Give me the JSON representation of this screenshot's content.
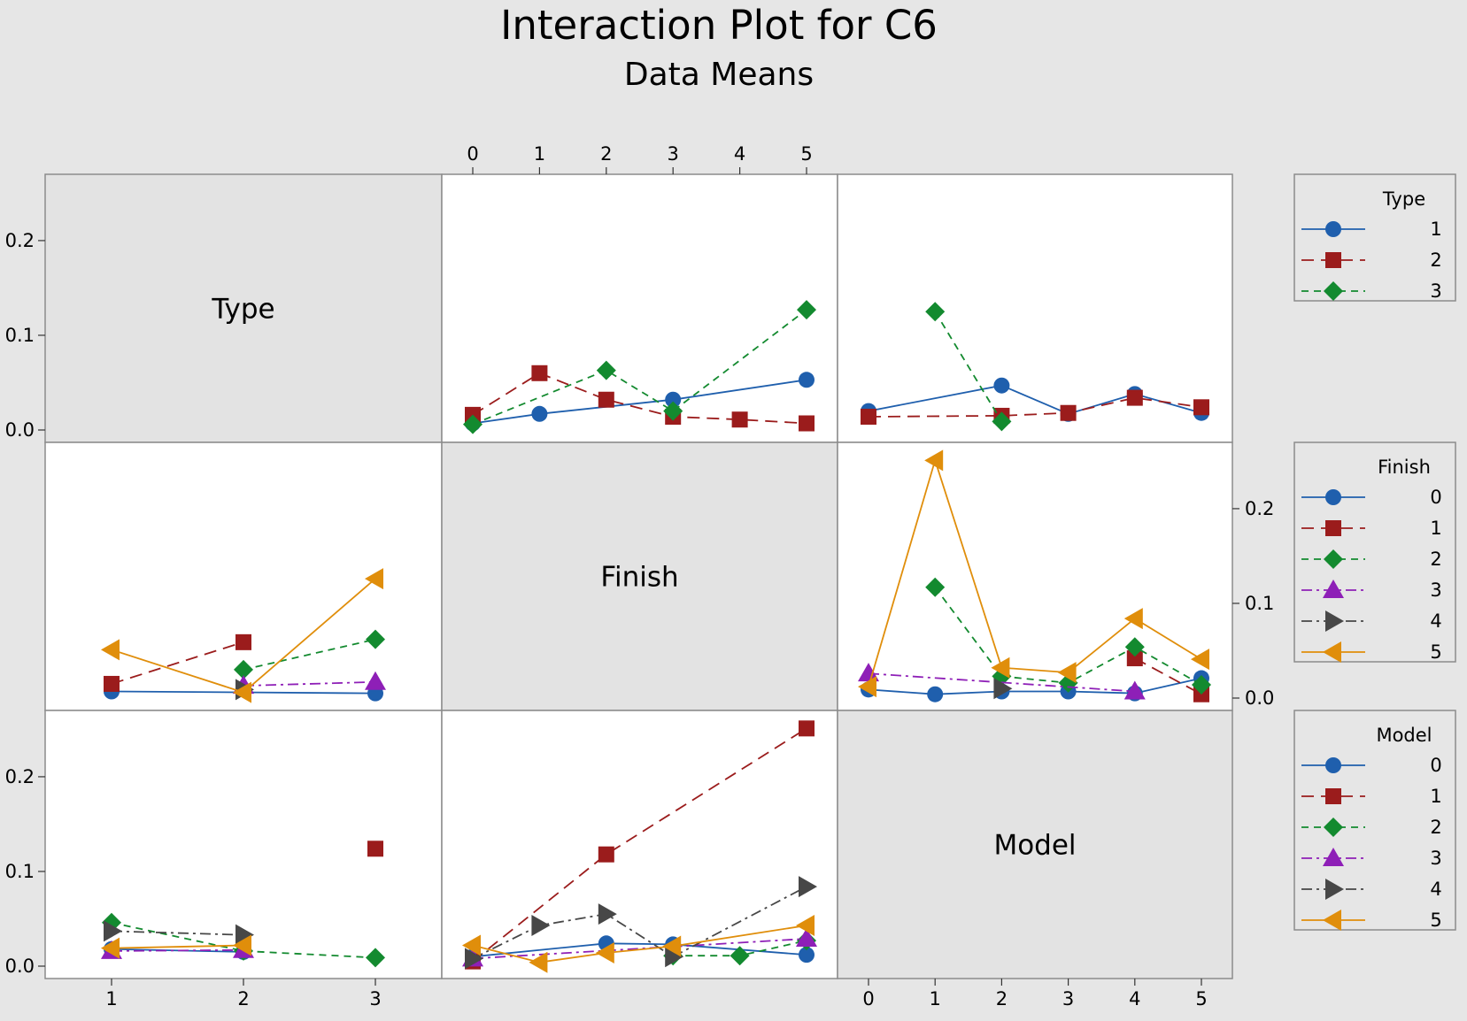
{
  "chart_data": {
    "type": "line",
    "title": "Interaction Plot for C6",
    "subtitle": "Data Means",
    "factors": [
      "Type",
      "Finish",
      "Model"
    ],
    "levels": {
      "Type": [
        "1",
        "2",
        "3"
      ],
      "Finish": [
        "0",
        "1",
        "2",
        "3",
        "4",
        "5"
      ],
      "Model": [
        "0",
        "1",
        "2",
        "3",
        "4",
        "5"
      ]
    },
    "yticks": [
      "0.0",
      "0.1",
      "0.2"
    ],
    "ylim": [
      0,
      0.27
    ],
    "legends": [
      {
        "title": "Type",
        "labels": [
          "1",
          "2",
          "3"
        ]
      },
      {
        "title": "Finish",
        "labels": [
          "0",
          "1",
          "2",
          "3",
          "4",
          "5"
        ]
      },
      {
        "title": "Model",
        "labels": [
          "0",
          "1",
          "2",
          "3",
          "4",
          "5"
        ]
      }
    ],
    "panels": [
      {
        "row": 0,
        "col": 1,
        "x_factor": "Finish",
        "trace_factor": "Type",
        "series": [
          {
            "name": "1",
            "values": [
              0.007,
              0.017,
              null,
              0.032,
              null,
              0.053
            ]
          },
          {
            "name": "2",
            "values": [
              0.016,
              0.06,
              0.032,
              0.014,
              0.011,
              0.007
            ]
          },
          {
            "name": "3",
            "values": [
              0.006,
              null,
              0.063,
              0.02,
              null,
              0.127
            ]
          }
        ]
      },
      {
        "row": 0,
        "col": 2,
        "x_factor": "Model",
        "trace_factor": "Type",
        "series": [
          {
            "name": "1",
            "values": [
              0.02,
              null,
              0.047,
              0.017,
              0.038,
              0.018
            ]
          },
          {
            "name": "2",
            "values": [
              0.014,
              null,
              0.015,
              0.018,
              0.034,
              0.024
            ]
          },
          {
            "name": "3",
            "values": [
              null,
              0.125,
              0.009,
              null,
              null,
              null
            ]
          }
        ]
      },
      {
        "row": 1,
        "col": 0,
        "x_factor": "Type",
        "trace_factor": "Finish",
        "series": [
          {
            "name": "0",
            "values": [
              0.007,
              null,
              0.005
            ]
          },
          {
            "name": "1",
            "values": [
              0.015,
              0.059,
              null
            ]
          },
          {
            "name": "2",
            "values": [
              null,
              0.03,
              0.062
            ]
          },
          {
            "name": "3",
            "values": [
              null,
              0.013,
              0.017
            ]
          },
          {
            "name": "4",
            "values": [
              null,
              0.009,
              null
            ]
          },
          {
            "name": "5",
            "values": [
              0.051,
              0.006,
              0.126
            ]
          }
        ]
      },
      {
        "row": 1,
        "col": 2,
        "x_factor": "Model",
        "trace_factor": "Finish",
        "series": [
          {
            "name": "0",
            "values": [
              0.009,
              0.004,
              0.007,
              0.007,
              0.005,
              0.021
            ]
          },
          {
            "name": "1",
            "values": [
              null,
              null,
              null,
              null,
              0.042,
              0.004
            ]
          },
          {
            "name": "2",
            "values": [
              null,
              0.117,
              0.023,
              0.016,
              0.054,
              0.014
            ]
          },
          {
            "name": "3",
            "values": [
              0.026,
              null,
              null,
              null,
              0.007,
              null
            ]
          },
          {
            "name": "4",
            "values": [
              null,
              null,
              0.01,
              null,
              null,
              null
            ]
          },
          {
            "name": "5",
            "values": [
              0.012,
              0.251,
              0.032,
              0.027,
              0.084,
              0.041
            ]
          }
        ]
      },
      {
        "row": 2,
        "col": 0,
        "x_factor": "Type",
        "trace_factor": "Model",
        "series": [
          {
            "name": "0",
            "values": [
              0.018,
              0.015,
              null
            ]
          },
          {
            "name": "1",
            "values": [
              null,
              null,
              0.124
            ]
          },
          {
            "name": "2",
            "values": [
              0.046,
              0.016,
              0.009
            ]
          },
          {
            "name": "3",
            "values": [
              0.016,
              0.017,
              null
            ]
          },
          {
            "name": "4",
            "values": [
              0.037,
              0.033,
              null
            ]
          },
          {
            "name": "5",
            "values": [
              0.019,
              0.022,
              null
            ]
          }
        ]
      },
      {
        "row": 2,
        "col": 1,
        "x_factor": "Finish",
        "trace_factor": "Model",
        "series": [
          {
            "name": "0",
            "values": [
              0.01,
              null,
              0.024,
              0.023,
              null,
              0.012
            ]
          },
          {
            "name": "1",
            "values": [
              0.005,
              null,
              0.118,
              null,
              null,
              0.251
            ]
          },
          {
            "name": "2",
            "values": [
              null,
              null,
              null,
              0.011,
              0.011,
              0.027
            ]
          },
          {
            "name": "3",
            "values": [
              0.008,
              null,
              null,
              null,
              null,
              0.029
            ]
          },
          {
            "name": "4",
            "values": [
              0.008,
              0.043,
              0.055,
              0.01,
              null,
              0.084
            ]
          },
          {
            "name": "5",
            "values": [
              0.022,
              0.004,
              0.014,
              0.021,
              null,
              0.043
            ]
          }
        ]
      }
    ]
  },
  "diagonal_labels": [
    "Type",
    "Finish",
    "Model"
  ],
  "colors": {
    "background": "#e6e6e6",
    "panel": "#ffffff",
    "diagonal_panel": "#e3e3e3",
    "series": [
      "#1f5fad",
      "#9b1c1c",
      "#138a2f",
      "#8e1fb7",
      "#474747",
      "#e08e0b"
    ]
  },
  "markers": [
    "circle",
    "square",
    "diamond",
    "triangle-up",
    "triangle-right",
    "triangle-left"
  ],
  "line_styles": [
    "solid",
    "longdash",
    "dash",
    "dashdot",
    "dashdot",
    "solid"
  ]
}
